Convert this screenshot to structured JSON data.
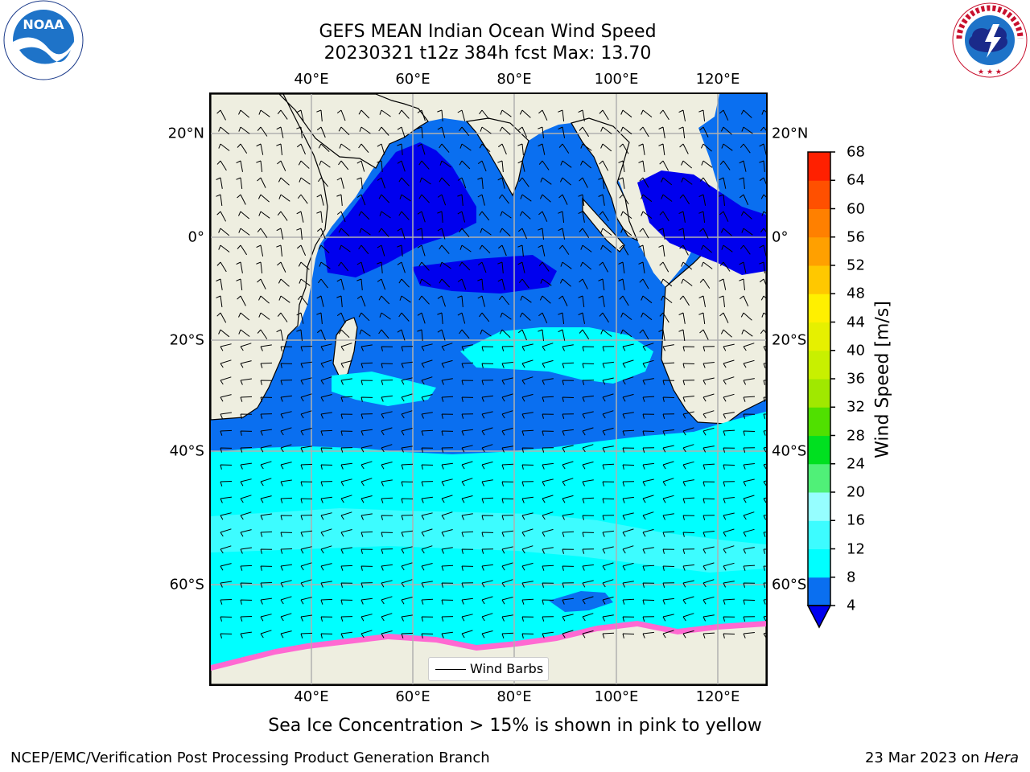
{
  "title": {
    "line1": "GEFS MEAN Indian Ocean Wind Speed",
    "line2": "20230321 t12z 384h fcst   Max: 13.70"
  },
  "logos": {
    "left": "NOAA",
    "left_ring": "NATIONAL OCEANIC AND ATMOSPHERIC ADMINISTRATION · U.S. DEPARTMENT OF COMMERCE",
    "right_ring": "NATIONAL WEATHER SERVICE"
  },
  "map": {
    "lon_ticks": [
      "40°E",
      "60°E",
      "80°E",
      "100°E",
      "120°E"
    ],
    "lat_ticks": [
      "20°N",
      "0°",
      "20°S",
      "40°S",
      "60°S"
    ],
    "legend_label": "Wind Barbs",
    "colors": {
      "land": "#eeeee0",
      "ocean_4_8": "#0a6ff0",
      "ocean_0_4": "#0000ee",
      "ocean_8_12": "#00ffff",
      "ocean_12_16": "#3dfcff",
      "sea_ice": "#ff69d2"
    }
  },
  "colorbar": {
    "title": "Wind Speed [m/s]",
    "ticks": [
      "4",
      "8",
      "12",
      "16",
      "20",
      "24",
      "28",
      "32",
      "36",
      "40",
      "44",
      "48",
      "52",
      "56",
      "60",
      "64",
      "68"
    ],
    "colors": [
      "#0a6ff0",
      "#00ffff",
      "#3dfcff",
      "#96feff",
      "#50f078",
      "#00e020",
      "#50e000",
      "#a0e800",
      "#c8f000",
      "#e6f000",
      "#fff000",
      "#ffc800",
      "#ffa000",
      "#ff8000",
      "#ff5000",
      "#ff2000"
    ],
    "under_color": "#0000ee"
  },
  "caption": "Sea Ice Concentration > 15% is shown in pink to yellow",
  "footer": {
    "left": "NCEP/EMC/Verification Post Processing Product Generation Branch",
    "right_date": "23 Mar 2023 on ",
    "right_machine": "Hera"
  }
}
